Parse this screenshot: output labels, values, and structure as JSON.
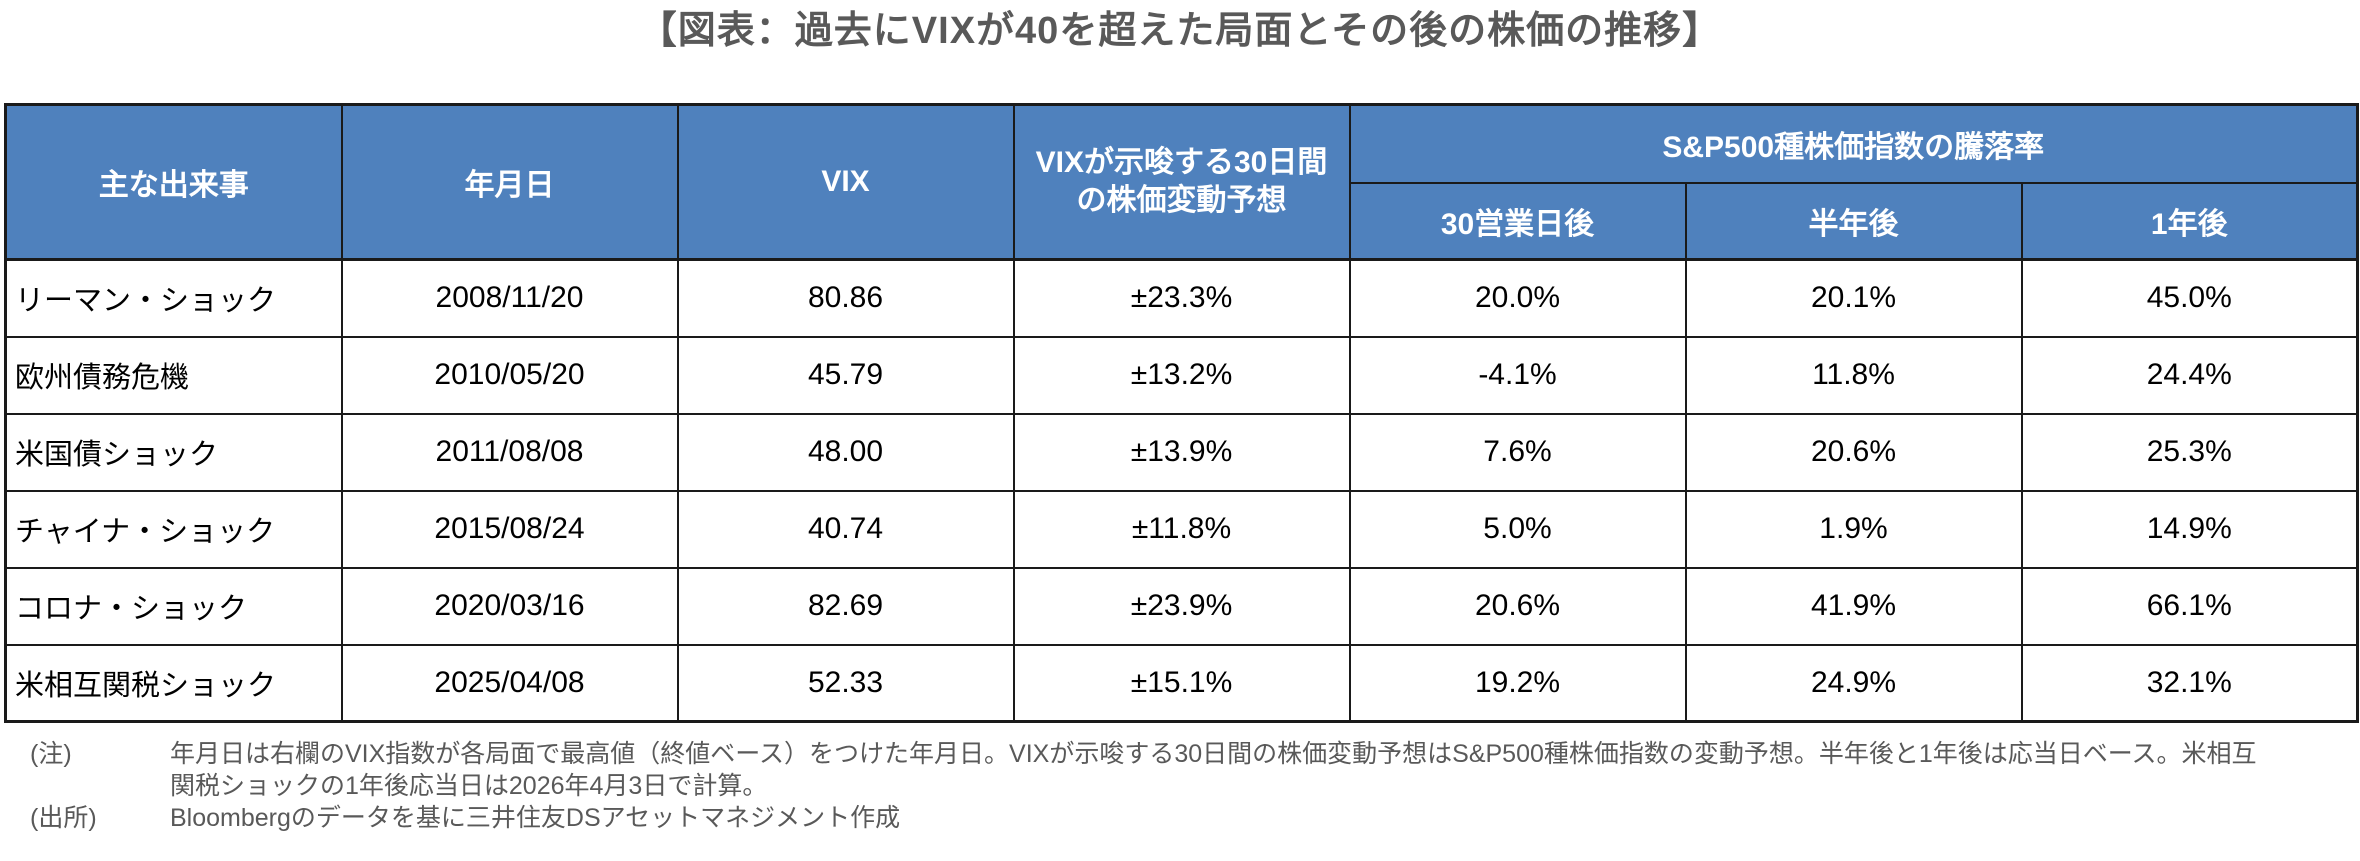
{
  "title": "【図表：過去にVIXが40を超えた局面とその後の株価の推移】",
  "colors": {
    "header_bg": "#4f81bd",
    "header_text": "#ffffff",
    "border": "#1a1a1a",
    "title_text": "#595959",
    "note_text": "#595959",
    "body_text": "#000000"
  },
  "table": {
    "headers": {
      "event": "主な出来事",
      "date": "年月日",
      "vix": "VIX",
      "implied": "VIXが示唆する30日間\nの株価変動予想",
      "sp500_group": "S&P500種株価指数の騰落率",
      "sub": [
        "30営業日後",
        "半年後",
        "1年後"
      ]
    },
    "rows": [
      {
        "event": "リーマン・ショック",
        "date": "2008/11/20",
        "vix": "80.86",
        "implied": "±23.3%",
        "d30": "20.0%",
        "half": "20.1%",
        "year": "45.0%"
      },
      {
        "event": "欧州債務危機",
        "date": "2010/05/20",
        "vix": "45.79",
        "implied": "±13.2%",
        "d30": "-4.1%",
        "half": "11.8%",
        "year": "24.4%"
      },
      {
        "event": "米国債ショック",
        "date": "2011/08/08",
        "vix": "48.00",
        "implied": "±13.9%",
        "d30": "7.6%",
        "half": "20.6%",
        "year": "25.3%"
      },
      {
        "event": "チャイナ・ショック",
        "date": "2015/08/24",
        "vix": "40.74",
        "implied": "±11.8%",
        "d30": "5.0%",
        "half": "1.9%",
        "year": "14.9%"
      },
      {
        "event": "コロナ・ショック",
        "date": "2020/03/16",
        "vix": "82.69",
        "implied": "±23.9%",
        "d30": "20.6%",
        "half": "41.9%",
        "year": "66.1%"
      },
      {
        "event": "米相互関税ショック",
        "date": "2025/04/08",
        "vix": "52.33",
        "implied": "±15.1%",
        "d30": "19.2%",
        "half": "24.9%",
        "year": "32.1%"
      }
    ]
  },
  "notes": {
    "note_label": "(注)",
    "note_text": "年月日は右欄のVIX指数が各局面で最高値（終値ベース）をつけた年月日。VIXが示唆する30日間の株価変動予想はS&P500種株価指数の変動予想。半年後と1年後は応当日ベース。米相互\n関税ショックの1年後応当日は2026年4月3日で計算。",
    "source_label": "(出所)",
    "source_text": "Bloombergのデータを基に三井住友DSアセットマネジメント作成"
  },
  "chart_data": {
    "type": "table",
    "title": "【図表：過去にVIXが40を超えた局面とその後の株価の推移】",
    "columns": [
      "主な出来事",
      "年月日",
      "VIX",
      "VIXが示唆する30日間の株価変動予想",
      "30営業日後",
      "半年後",
      "1年後"
    ],
    "column_group": {
      "label": "S&P500種株価指数の騰落率",
      "spans": [
        "30営業日後",
        "半年後",
        "1年後"
      ]
    },
    "rows": [
      [
        "リーマン・ショック",
        "2008/11/20",
        80.86,
        "±23.3%",
        "20.0%",
        "20.1%",
        "45.0%"
      ],
      [
        "欧州債務危機",
        "2010/05/20",
        45.79,
        "±13.2%",
        "-4.1%",
        "11.8%",
        "24.4%"
      ],
      [
        "米国債ショック",
        "2011/08/08",
        48.0,
        "±13.9%",
        "7.6%",
        "20.6%",
        "25.3%"
      ],
      [
        "チャイナ・ショック",
        "2015/08/24",
        40.74,
        "±11.8%",
        "5.0%",
        "1.9%",
        "14.9%"
      ],
      [
        "コロナ・ショック",
        "2020/03/16",
        82.69,
        "±23.9%",
        "20.6%",
        "41.9%",
        "66.1%"
      ],
      [
        "米相互関税ショック",
        "2025/04/08",
        52.33,
        "±15.1%",
        "19.2%",
        "24.9%",
        "32.1%"
      ]
    ]
  }
}
